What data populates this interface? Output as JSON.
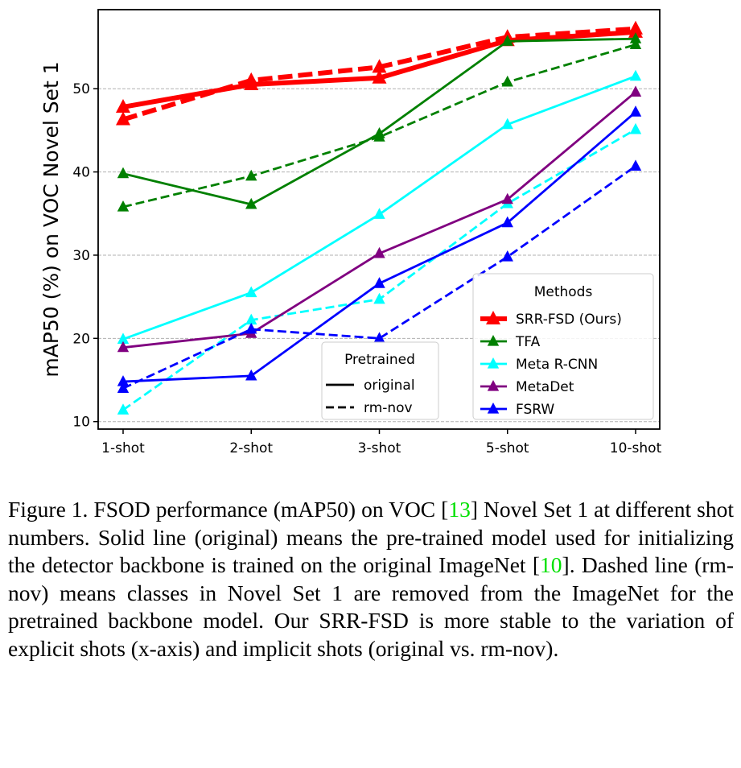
{
  "chart_data": {
    "type": "line",
    "title": "",
    "xlabel": "",
    "ylabel": "mAP50 (%) on VOC Novel Set 1",
    "categories": [
      "1-shot",
      "2-shot",
      "3-shot",
      "5-shot",
      "10-shot"
    ],
    "yticks": [
      10,
      20,
      30,
      40,
      50
    ],
    "ylim": [
      9.1,
      59.5
    ],
    "grid": "horizontal dashed",
    "series": [
      {
        "name": "SRR-FSD (Ours)",
        "pretrained": "original",
        "color": "#ff0000",
        "values": [
          47.8,
          50.5,
          51.3,
          55.8,
          56.8
        ]
      },
      {
        "name": "SRR-FSD (Ours)",
        "pretrained": "rm-nov",
        "color": "#ff0000",
        "values": [
          46.3,
          51.0,
          52.6,
          56.2,
          57.2
        ]
      },
      {
        "name": "TFA",
        "pretrained": "original",
        "color": "#008000",
        "values": [
          39.8,
          36.1,
          44.6,
          55.7,
          56.0
        ]
      },
      {
        "name": "TFA",
        "pretrained": "rm-nov",
        "color": "#008000",
        "values": [
          35.8,
          39.5,
          44.2,
          50.8,
          55.3
        ]
      },
      {
        "name": "Meta R-CNN",
        "pretrained": "original",
        "color": "#00ffff",
        "values": [
          19.9,
          25.5,
          34.9,
          45.7,
          51.5
        ]
      },
      {
        "name": "Meta R-CNN",
        "pretrained": "rm-nov",
        "color": "#00ffff",
        "values": [
          11.4,
          22.2,
          24.7,
          36.2,
          45.1
        ]
      },
      {
        "name": "MetaDet",
        "pretrained": "original",
        "color": "#800080",
        "values": [
          18.9,
          20.6,
          30.2,
          36.7,
          49.6
        ]
      },
      {
        "name": "FSRW",
        "pretrained": "original",
        "color": "#0000ff",
        "values": [
          14.8,
          15.5,
          26.6,
          33.9,
          47.2
        ]
      },
      {
        "name": "FSRW",
        "pretrained": "rm-nov",
        "color": "#0000ff",
        "values": [
          14.0,
          21.1,
          20.0,
          29.8,
          40.7
        ]
      }
    ],
    "legend_methods": {
      "title": "Methods",
      "placement": "lower-right",
      "entries": [
        {
          "label": "SRR-FSD (Ours)",
          "color": "#ff0000"
        },
        {
          "label": "TFA",
          "color": "#008000"
        },
        {
          "label": "Meta R-CNN",
          "color": "#00ffff"
        },
        {
          "label": "MetaDet",
          "color": "#800080"
        },
        {
          "label": "FSRW",
          "color": "#0000ff"
        }
      ]
    },
    "legend_pretrained": {
      "title": "Pretrained",
      "placement": "lower-center",
      "entries": [
        {
          "label": "original",
          "style": "solid"
        },
        {
          "label": "rm-nov",
          "style": "dashed"
        }
      ]
    }
  },
  "caption": {
    "p1": "Figure 1. FSOD performance (mAP50) on VOC [",
    "c1": "13",
    "p2": "] Novel Set 1 at different shot numbers. Solid line (original) means the pre-trained model used for initializing the detector backbone is trained on the original ImageNet [",
    "c2": "10",
    "p3": "]. Dashed line (rm-nov) means classes in Novel Set 1 are removed from the ImageNet for the pretrained backbone model. Our SRR-FSD is more stable to the variation of explicit shots (x-axis) and implicit shots (original vs. rm-nov)."
  }
}
